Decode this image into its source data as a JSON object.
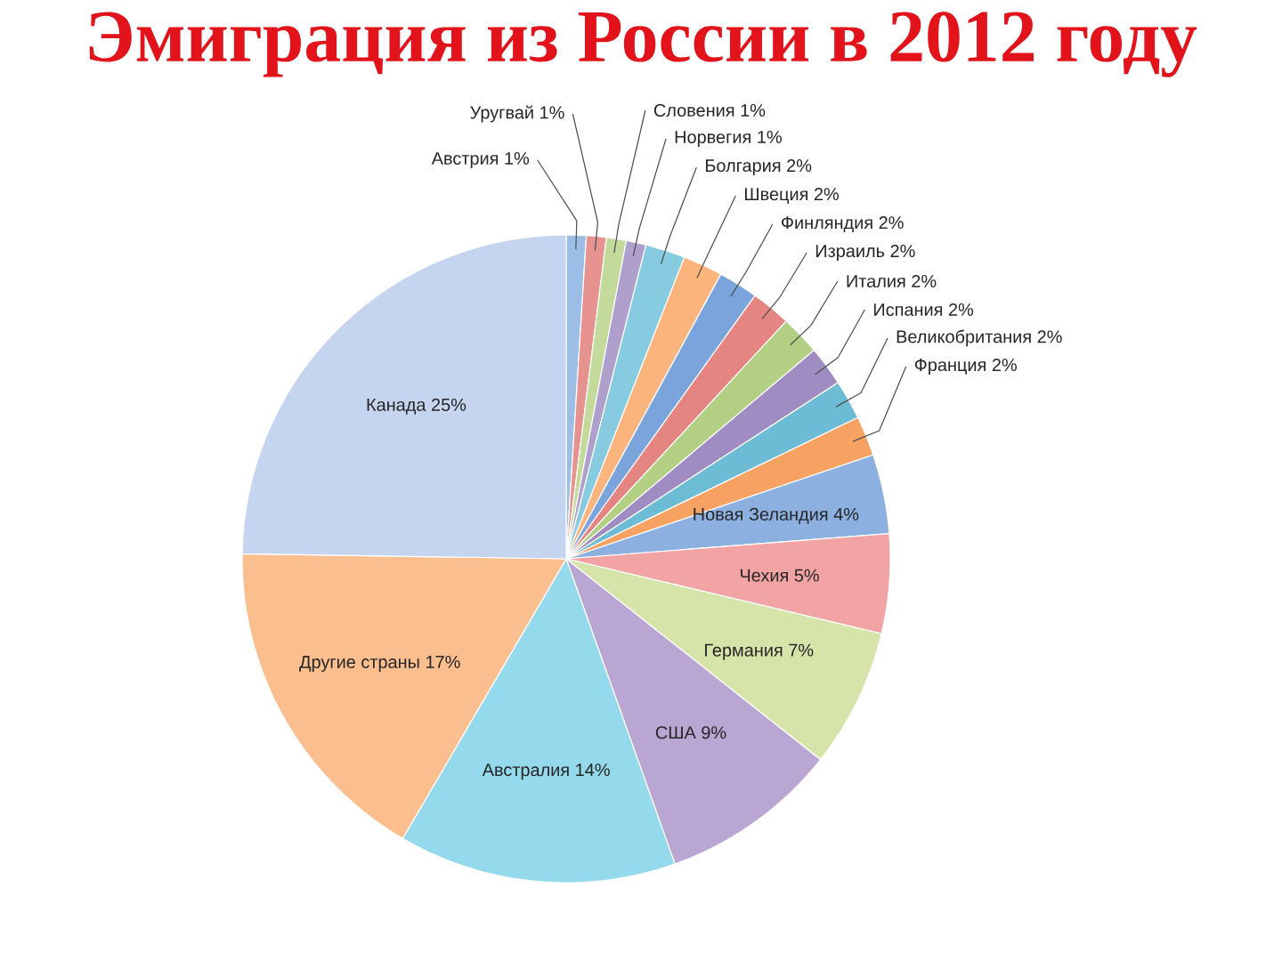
{
  "chart_data": {
    "type": "pie",
    "title": "Эмиграция из России в 2012 году",
    "categories": [
      "Австрия",
      "Уругвай",
      "Словения",
      "Норвегия",
      "Болгария",
      "Швеция",
      "Финляндия",
      "Израиль",
      "Италия",
      "Испания",
      "Великобритания",
      "Франция",
      "Новая Зеландия",
      "Чехия",
      "Германия",
      "США",
      "Австралия",
      "Другие страны",
      "Канада"
    ],
    "values": [
      1,
      1,
      1,
      1,
      2,
      2,
      2,
      2,
      2,
      2,
      2,
      2,
      4,
      5,
      7,
      9,
      14,
      17,
      25
    ],
    "value_labels": [
      "1%",
      "1%",
      "1%",
      "1%",
      "2%",
      "2%",
      "2%",
      "2%",
      "2%",
      "2%",
      "2%",
      "2%",
      "4%",
      "5%",
      "7%",
      "9%",
      "14%",
      "17%",
      "25%"
    ],
    "colors": [
      "#9bbde6",
      "#e6928f",
      "#c3da9a",
      "#ae9fcd",
      "#86cbdf",
      "#fab47c",
      "#7aa4db",
      "#e58582",
      "#b2cf84",
      "#9f8cc2",
      "#6dbcd5",
      "#f7a262",
      "#8cb1e1",
      "#f2a3a3",
      "#d7e4a9",
      "#b9a6d3",
      "#95d9ec",
      "#fbbe8e",
      "#c6d5ef"
    ]
  }
}
